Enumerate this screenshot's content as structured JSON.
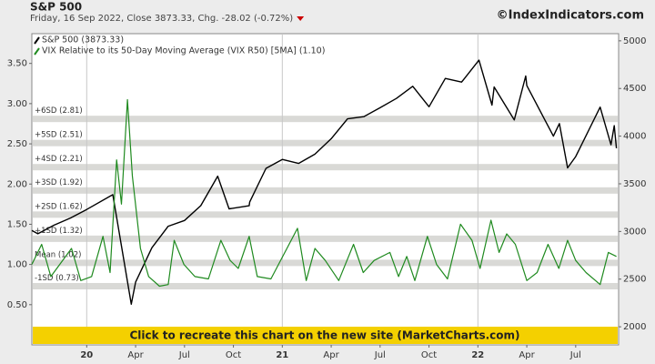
{
  "chart_data": {
    "type": "line",
    "title": "S&P 500",
    "subtitle": "Friday, 16 Sep 2022, Close 3873.33, Chg. -28.02 (-0.72%)",
    "credit": "©IndexIndicators.com",
    "xlim": [
      "2019-09-20",
      "2022-09-20"
    ],
    "xticks": [
      {
        "value": "2020-01",
        "label": "20"
      },
      {
        "value": "2020-04",
        "label": "Apr"
      },
      {
        "value": "2020-07",
        "label": "Jul"
      },
      {
        "value": "2020-10",
        "label": "Oct"
      },
      {
        "value": "2021-01",
        "label": "21"
      },
      {
        "value": "2021-04",
        "label": "Apr"
      },
      {
        "value": "2021-07",
        "label": "Jul"
      },
      {
        "value": "2021-10",
        "label": "Oct"
      },
      {
        "value": "2022-01",
        "label": "22"
      },
      {
        "value": "2022-04",
        "label": "Apr"
      },
      {
        "value": "2022-07",
        "label": "Jul"
      }
    ],
    "ylim": [
      0,
      3.87
    ],
    "yticks": [
      {
        "value": 0.5,
        "label": "0.50"
      },
      {
        "value": 1,
        "label": "1.00"
      },
      {
        "value": 1.5,
        "label": "1.50"
      },
      {
        "value": 2,
        "label": "2.00"
      },
      {
        "value": 2.5,
        "label": "2.50"
      },
      {
        "value": 3,
        "label": "3.00"
      },
      {
        "value": 3.5,
        "label": "3.50"
      }
    ],
    "y2lim": [
      1810,
      5075
    ],
    "y2ticks": [
      2000,
      2500,
      3000,
      3500,
      4000,
      4500,
      5000
    ],
    "bands": [
      {
        "label": "+6SD (2.81)",
        "value": 2.81
      },
      {
        "label": "+5SD (2.51)",
        "value": 2.51
      },
      {
        "label": "+4SD (2.21)",
        "value": 2.21
      },
      {
        "label": "+3SD (1.92)",
        "value": 1.92
      },
      {
        "label": "+2SD (1.62)",
        "value": 1.62
      },
      {
        "label": "+1SD (1.32)",
        "value": 1.32
      },
      {
        "label": "Mean (1.02)",
        "value": 1.02
      },
      {
        "label": "-1SD (0.73)",
        "value": 0.73
      }
    ],
    "band_color": "#d9d9d6",
    "series": [
      {
        "name": "S&P 500 (3873.33)",
        "color": "#000000",
        "axis": "y2",
        "x": [
          "2019-09-20",
          "2019-10",
          "2019-11",
          "2019-12",
          "2020-01",
          "2020-02-19",
          "2020-03-23",
          "2020-04",
          "2020-05",
          "2020-06",
          "2020-07",
          "2020-08",
          "2020-09-02",
          "2020-09-23",
          "2020-10-30",
          "2020-11",
          "2020-12",
          "2021-01",
          "2021-02",
          "2021-03",
          "2021-04",
          "2021-05",
          "2021-06",
          "2021-07",
          "2021-08",
          "2021-09",
          "2021-10",
          "2021-11",
          "2021-12",
          "2022-01-03",
          "2022-01-27",
          "2022-02",
          "2022-03-08",
          "2022-03-29",
          "2022-04",
          "2022-05-20",
          "2022-06",
          "2022-06-16",
          "2022-07",
          "2022-08-16",
          "2022-09-06",
          "2022-09-12",
          "2022-09-16"
        ],
        "values": [
          3010,
          2976,
          3066,
          3141,
          3231,
          3386,
          2237,
          2470,
          2830,
          3055,
          3115,
          3271,
          3580,
          3237,
          3270,
          3310,
          3662,
          3756,
          3714,
          3811,
          3973,
          4181,
          4204,
          4298,
          4395,
          4523,
          4308,
          4605,
          4567,
          4797,
          4326,
          4516,
          4170,
          4631,
          4530,
          4000,
          4132,
          3667,
          3785,
          4305,
          3909,
          4110,
          3873
        ]
      },
      {
        "name": "VIX Relative to its 50-Day Moving Average (VIX R50) [5MA] (1.10)",
        "color": "#1f8a1f",
        "axis": "y",
        "x": [
          "2019-09-20",
          "2019-10-08",
          "2019-10-25",
          "2019-12-03",
          "2019-12-20",
          "2020-01-10",
          "2020-01-31",
          "2020-02-14",
          "2020-02-26",
          "2020-03-05",
          "2020-03-16",
          "2020-03-25",
          "2020-04-10",
          "2020-04-25",
          "2020-05-15",
          "2020-06-01",
          "2020-06-12",
          "2020-06-30",
          "2020-07-20",
          "2020-08-15",
          "2020-09-08",
          "2020-09-25",
          "2020-10-10",
          "2020-10-30",
          "2020-11-15",
          "2020-12-10",
          "2021-01-29",
          "2021-02-15",
          "2021-03-01",
          "2021-03-20",
          "2021-04-15",
          "2021-05-12",
          "2021-05-30",
          "2021-06-20",
          "2021-07-19",
          "2021-08-05",
          "2021-08-20",
          "2021-09-05",
          "2021-09-28",
          "2021-10-15",
          "2021-11-05",
          "2021-11-29",
          "2021-12-20",
          "2022-01-05",
          "2022-01-25",
          "2022-02-10",
          "2022-02-24",
          "2022-03-10",
          "2022-04-01",
          "2022-04-20",
          "2022-05-10",
          "2022-05-30",
          "2022-06-16",
          "2022-07-01",
          "2022-07-20",
          "2022-08-16",
          "2022-09-01",
          "2022-09-16"
        ],
        "values": [
          1.0,
          1.25,
          0.85,
          1.2,
          0.8,
          0.85,
          1.35,
          0.9,
          2.3,
          1.75,
          3.05,
          2.1,
          1.2,
          0.85,
          0.73,
          0.75,
          1.3,
          1.0,
          0.85,
          0.82,
          1.3,
          1.05,
          0.95,
          1.35,
          0.85,
          0.82,
          1.45,
          0.8,
          1.2,
          1.05,
          0.8,
          1.25,
          0.9,
          1.05,
          1.15,
          0.85,
          1.1,
          0.8,
          1.35,
          1.0,
          0.82,
          1.5,
          1.3,
          0.95,
          1.55,
          1.15,
          1.38,
          1.25,
          0.8,
          0.9,
          1.25,
          0.95,
          1.3,
          1.05,
          0.9,
          0.75,
          1.15,
          1.1
        ]
      }
    ]
  },
  "banner": "Click to recreate this chart on the new site (MarketCharts.com)"
}
